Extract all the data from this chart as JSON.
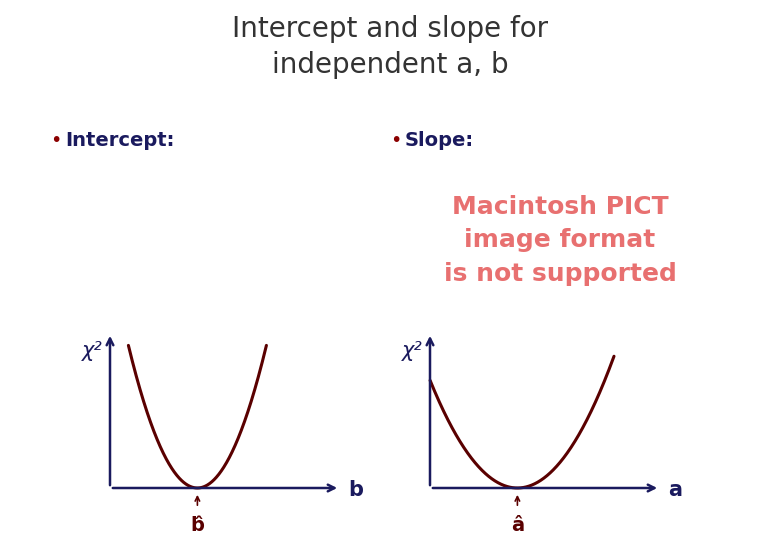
{
  "title": "Intercept and slope for\nindependent a, b",
  "title_fontsize": 20,
  "title_color": "#333333",
  "label_color": "#1a1a5e",
  "bullet_fontsize": 14,
  "intercept_label": "Intercept:",
  "slope_label": "Slope:",
  "pict_text": "Macintosh PICT\nimage format\nis not supported",
  "pict_color": "#e87070",
  "pict_fontsize": 18,
  "axis_color": "#1a1a5e",
  "curve_color": "#5a0000",
  "curve_lw": 2.2,
  "chi2_fontsize": 15,
  "xlabel_fontsize": 15,
  "hat_fontsize": 14,
  "background_color": "#ffffff",
  "left_plot": {
    "xlabel": "b",
    "xlabel_hat": "b̂",
    "ylabel": "χ²",
    "narrow": true
  },
  "right_plot": {
    "xlabel": "a",
    "xlabel_hat": "â",
    "ylabel": "χ²",
    "narrow": false
  }
}
